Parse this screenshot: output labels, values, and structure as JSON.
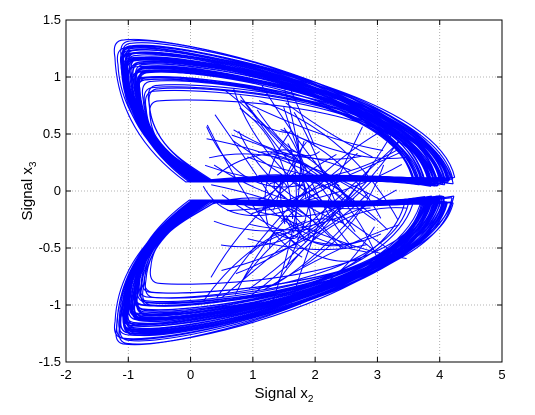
{
  "chart_data": {
    "type": "line",
    "xlabel": "Signal x",
    "xlabel_subscript": "2",
    "ylabel": "Signal x",
    "ylabel_subscript": "3",
    "xlim": [
      -2,
      5
    ],
    "ylim": [
      -1.5,
      1.5
    ],
    "xticks": [
      -2,
      -1,
      0,
      1,
      2,
      3,
      4,
      5
    ],
    "yticks": [
      -1.5,
      -1,
      -0.5,
      0,
      0.5,
      1,
      1.5
    ],
    "xtick_labels": [
      "-2",
      "-1",
      "0",
      "1",
      "2",
      "3",
      "4",
      "5"
    ],
    "ytick_labels": [
      "-1.5",
      "-1",
      "-0.5",
      "0",
      "0.5",
      "1",
      "1.5"
    ],
    "grid": true,
    "grid_style": "dotted",
    "box": true,
    "series": [
      {
        "color": "#0000ff",
        "description_points": [
          {
            "x": -1.2,
            "y": 1.35
          },
          {
            "x": 4.15,
            "y": 0.08
          },
          {
            "x": 0.0,
            "y": 0.1
          },
          {
            "x": -1.2,
            "y": -1.33
          },
          {
            "x": 3.65,
            "y": -0.35
          }
        ]
      }
    ]
  }
}
